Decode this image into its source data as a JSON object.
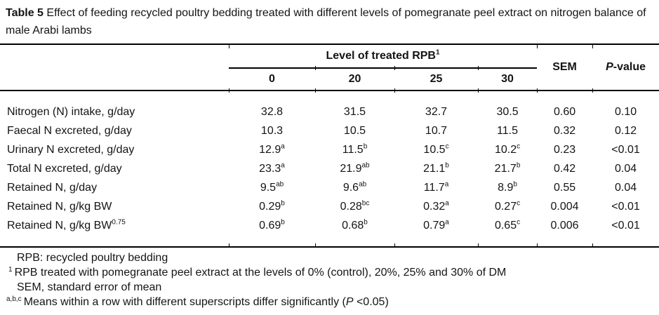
{
  "title": {
    "bold": "Table 5",
    "rest": " Effect of feeding recycled poultry bedding treated with different levels of pomegranate peel extract on nitrogen balance of male Arabi lambs"
  },
  "table": {
    "group_header": {
      "label": "Level of treated RPB",
      "sup": "1"
    },
    "level_columns": [
      "0",
      "20",
      "25",
      "30"
    ],
    "sem_header": "SEM",
    "pvalue_header": {
      "italic": "P",
      "rest": "-value"
    },
    "rows": [
      {
        "label": "Nitrogen (N) intake, g/day",
        "values": [
          {
            "v": "32.8"
          },
          {
            "v": "31.5"
          },
          {
            "v": "32.7"
          },
          {
            "v": "30.5"
          }
        ],
        "sem": "0.60",
        "p": "0.10"
      },
      {
        "label": "Faecal N excreted, g/day",
        "values": [
          {
            "v": "10.3"
          },
          {
            "v": "10.5"
          },
          {
            "v": "10.7"
          },
          {
            "v": "11.5"
          }
        ],
        "sem": "0.32",
        "p": "0.12"
      },
      {
        "label": "Urinary N excreted, g/day",
        "values": [
          {
            "v": "12.9",
            "s": "a"
          },
          {
            "v": "11.5",
            "s": "b"
          },
          {
            "v": "10.5",
            "s": "c"
          },
          {
            "v": "10.2",
            "s": "c"
          }
        ],
        "sem": "0.23",
        "p": "<0.01"
      },
      {
        "label": "Total N excreted, g/day",
        "values": [
          {
            "v": "23.3",
            "s": "a"
          },
          {
            "v": "21.9",
            "s": "ab"
          },
          {
            "v": "21.1",
            "s": "b"
          },
          {
            "v": "21.7",
            "s": "b"
          }
        ],
        "sem": "0.42",
        "p": "0.04"
      },
      {
        "label": "Retained N, g/day",
        "values": [
          {
            "v": "9.5",
            "s": "ab"
          },
          {
            "v": "9.6",
            "s": "ab"
          },
          {
            "v": "11.7",
            "s": "a"
          },
          {
            "v": "8.9",
            "s": "b"
          }
        ],
        "sem": "0.55",
        "p": "0.04"
      },
      {
        "label": "Retained N, g/kg BW",
        "values": [
          {
            "v": "0.29",
            "s": "b"
          },
          {
            "v": "0.28",
            "s": "bc"
          },
          {
            "v": "0.32",
            "s": "a"
          },
          {
            "v": "0.27",
            "s": "c"
          }
        ],
        "sem": "0.004",
        "p": "<0.01"
      },
      {
        "label": "Retained N, g/kg BW",
        "label_sup": "0.75",
        "values": [
          {
            "v": "0.69",
            "s": "b"
          },
          {
            "v": "0.68",
            "s": "b"
          },
          {
            "v": "0.79",
            "s": "a"
          },
          {
            "v": "0.65",
            "s": "c"
          }
        ],
        "sem": "0.006",
        "p": "<0.01"
      }
    ]
  },
  "footnotes": {
    "line1": "RPB: recycled poultry bedding",
    "line2": {
      "sup": "1",
      "text": "RPB treated with pomegranate peel extract at the levels of 0% (control), 20%, 25% and 30% of DM"
    },
    "line3": "SEM, standard error of mean",
    "line4": {
      "sup": "a,b,c",
      "pre": "Means within a row with different superscripts differ significantly (",
      "p": "P",
      "post": " <0.05)"
    }
  }
}
